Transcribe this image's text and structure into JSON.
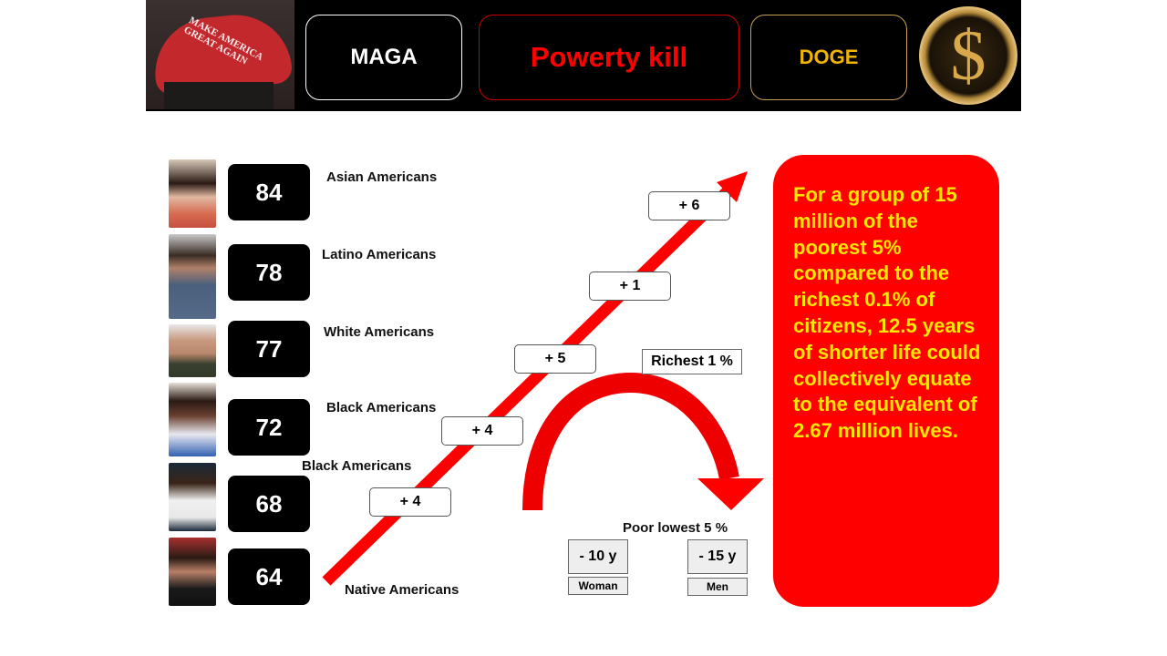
{
  "header": {
    "hat_text": "MAKE AMERICA\nGREAT AGAIN",
    "buttons": [
      {
        "label": "MAGA",
        "color": "#ffffff"
      },
      {
        "label": "Powerty kill",
        "color": "#ff0000"
      },
      {
        "label": "DOGE",
        "color": "#f0b400"
      }
    ],
    "coin_symbol": "$"
  },
  "groups": [
    {
      "value": "84",
      "label": "Asian Americans"
    },
    {
      "value": "78",
      "label": "Latino Americans"
    },
    {
      "value": "77",
      "label": "White Americans"
    },
    {
      "value": "72",
      "label": "Black Americans"
    },
    {
      "value": "68",
      "label": "Black Americans"
    },
    {
      "value": "64",
      "label": "Native Americans"
    }
  ],
  "steps": [
    "+ 6",
    "+ 1",
    "+ 5",
    "+ 4",
    "+ 4"
  ],
  "richest_label": "Richest 1 %",
  "poor_label": "Poor lowest 5 %",
  "poor": [
    {
      "value": "- 10 y",
      "label": "Woman"
    },
    {
      "value": "- 15 y",
      "label": "Men"
    }
  ],
  "panel_text": "For a group of 15 million of the poorest 5% compared to the richest 0.1% of citizens, 12.5 years of shorter life could collectively equate to the equivalent of 2.67 million lives.",
  "colors": {
    "accent": "#ff0000",
    "panel_text": "#ffe800"
  }
}
